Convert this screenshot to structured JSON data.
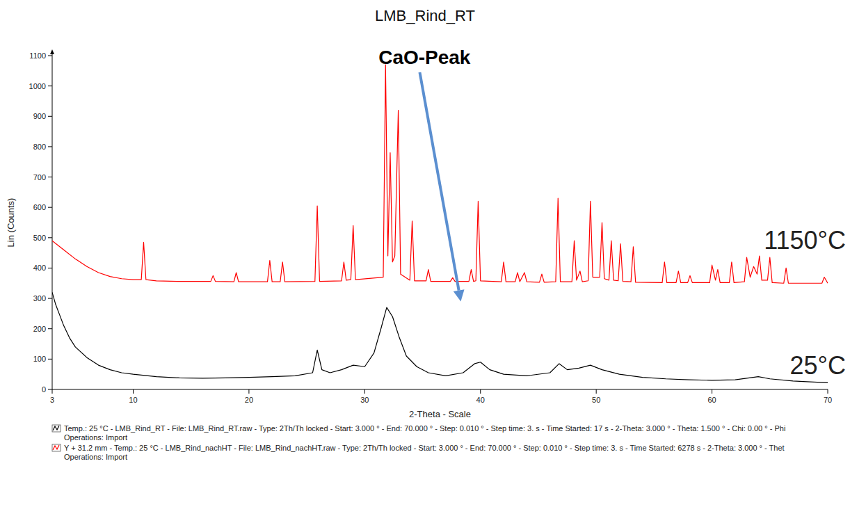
{
  "chart_data": {
    "type": "line",
    "title": "LMB_Rind_RT",
    "x_label": "2-Theta - Scale",
    "y_label": "Lin (Counts)",
    "xlim": [
      3,
      70
    ],
    "ylim": [
      0,
      1100
    ],
    "xticks": [
      3,
      10,
      20,
      30,
      40,
      50,
      60,
      70
    ],
    "yticks": [
      0,
      100,
      200,
      300,
      400,
      500,
      600,
      700,
      800,
      900,
      1000,
      1100
    ],
    "grid": false,
    "legend": "bottom",
    "annotations": [
      {
        "text": "CaO-Peak",
        "x": 38.3,
        "y": 290
      }
    ],
    "series": [
      {
        "name": "Temp.: 25 °C - LMB_Rind_RT - File: LMB_Rind_RT.raw - Type: 2Th/Th locked - Start: 3.000 ° - End: 70.000 ° - Step: 0.010 ° - Step time: 3. s - Time Started: 17 s - 2-Theta: 3.000 ° - Theta: 1.500 ° - Chi: 0.00 ° - Phi",
        "note": "Operations: Import",
        "label": "25°C",
        "color": "#000000",
        "x": [
          3,
          3.3,
          3.6,
          4,
          4.5,
          5,
          6,
          7,
          8,
          9,
          10,
          12,
          14,
          16,
          18,
          20,
          22,
          24,
          25.5,
          25.9,
          26.3,
          27,
          28,
          29,
          30,
          30.8,
          31.4,
          31.9,
          32.4,
          33,
          33.6,
          34.5,
          35.5,
          37,
          38.5,
          39.5,
          40,
          40.8,
          42,
          44,
          46,
          46.8,
          47.5,
          48.5,
          49.5,
          50.5,
          52,
          54,
          56,
          58,
          60,
          62,
          64,
          65,
          67,
          70
        ],
        "values": [
          320,
          280,
          250,
          210,
          170,
          140,
          105,
          80,
          65,
          55,
          50,
          42,
          38,
          37,
          38,
          40,
          42,
          45,
          55,
          130,
          65,
          55,
          65,
          80,
          75,
          120,
          200,
          270,
          240,
          170,
          110,
          75,
          55,
          45,
          55,
          85,
          90,
          65,
          50,
          45,
          55,
          85,
          65,
          70,
          80,
          65,
          50,
          40,
          35,
          32,
          30,
          32,
          42,
          35,
          28,
          22
        ]
      },
      {
        "name": "Y + 31.2 mm - Temp.: 25 °C - LMB_Rind_nachHT - File: LMB_Rind_nachHT.raw - Type: 2Th/Th locked - Start: 3.000 ° - End: 70.000 ° - Step: 0.010 ° - Step time: 3. s - Time Started: 6278 s - 2-Theta: 3.000 ° - Thet",
        "note": "Operations: Import",
        "label": "1150°C",
        "color": "#ff0000",
        "x": [
          3,
          3.5,
          4,
          5,
          6,
          7,
          8,
          9,
          10,
          10.7,
          10.9,
          11.1,
          12,
          14,
          16.7,
          16.9,
          17.1,
          18.7,
          18.9,
          19.1,
          21.6,
          21.8,
          22.0,
          22.7,
          22.9,
          23.1,
          25.7,
          25.9,
          26.1,
          28.0,
          28.2,
          28.4,
          28.8,
          29.0,
          29.2,
          31.6,
          31.8,
          32.0,
          32.2,
          32.4,
          32.6,
          32.9,
          33.1,
          33.9,
          34.1,
          34.3,
          35.3,
          35.5,
          35.7,
          37.4,
          37.6,
          37.8,
          39.0,
          39.2,
          39.4,
          39.6,
          39.8,
          40.0,
          41.8,
          42.0,
          42.2,
          43.0,
          43.2,
          43.4,
          43.8,
          44.0,
          45.1,
          45.3,
          45.5,
          46.5,
          46.7,
          46.9,
          47.9,
          48.1,
          48.3,
          48.6,
          48.8,
          49.3,
          49.5,
          49.7,
          50.3,
          50.5,
          50.7,
          51.1,
          51.3,
          51.5,
          51.9,
          52.1,
          52.3,
          53.0,
          53.2,
          53.4,
          55.7,
          55.9,
          56.1,
          56.9,
          57.1,
          57.3,
          57.9,
          58.1,
          58.3,
          59.8,
          60.0,
          60.3,
          60.5,
          60.7,
          61.5,
          61.7,
          61.9,
          62.8,
          63.0,
          63.3,
          63.6,
          63.9,
          64.1,
          64.3,
          64.8,
          65.0,
          65.2,
          66.2,
          66.4,
          66.6,
          69.5,
          69.7,
          70
        ],
        "values": [
          490,
          475,
          460,
          430,
          405,
          385,
          372,
          365,
          362,
          362,
          485,
          362,
          358,
          356,
          356,
          375,
          356,
          355,
          385,
          355,
          355,
          425,
          355,
          355,
          420,
          355,
          356,
          605,
          356,
          358,
          420,
          360,
          362,
          540,
          362,
          370,
          1070,
          440,
          780,
          420,
          440,
          920,
          380,
          360,
          555,
          358,
          358,
          395,
          356,
          356,
          368,
          356,
          356,
          395,
          356,
          358,
          620,
          358,
          355,
          420,
          355,
          355,
          385,
          355,
          385,
          355,
          353,
          380,
          353,
          355,
          630,
          355,
          355,
          490,
          360,
          390,
          355,
          358,
          620,
          370,
          370,
          550,
          365,
          360,
          490,
          360,
          358,
          480,
          356,
          355,
          470,
          353,
          352,
          420,
          352,
          352,
          390,
          352,
          352,
          375,
          352,
          352,
          410,
          360,
          395,
          352,
          352,
          420,
          352,
          355,
          435,
          370,
          405,
          380,
          440,
          360,
          360,
          435,
          352,
          350,
          400,
          350,
          350,
          370,
          350
        ]
      }
    ]
  }
}
